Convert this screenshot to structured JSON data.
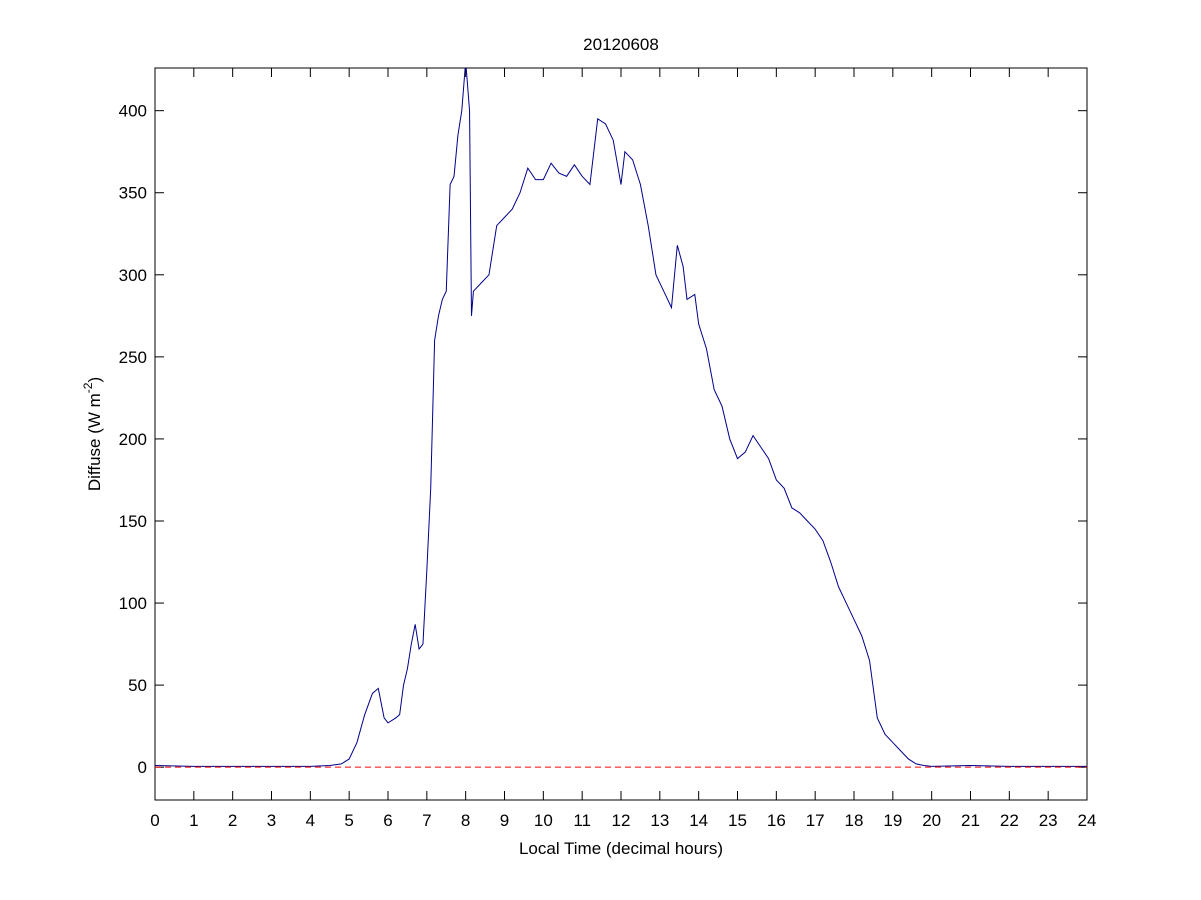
{
  "chart_data": {
    "type": "line",
    "title": "20120608",
    "xlabel": "Local Time (decimal hours)",
    "ylabel": [
      "Diffuse (W m",
      "-2",
      ")"
    ],
    "xlim": [
      0,
      24
    ],
    "ylim": [
      -20,
      426
    ],
    "xticks": [
      0,
      1,
      2,
      3,
      4,
      5,
      6,
      7,
      8,
      9,
      10,
      11,
      12,
      13,
      14,
      15,
      16,
      17,
      18,
      19,
      20,
      21,
      22,
      23,
      24
    ],
    "yticks": [
      0,
      50,
      100,
      150,
      200,
      250,
      300,
      350,
      400
    ],
    "series": [
      {
        "color": "#00008b",
        "x": [
          0,
          1,
          2,
          3,
          4,
          4.5,
          4.8,
          5.0,
          5.2,
          5.4,
          5.6,
          5.75,
          5.9,
          6.0,
          6.2,
          6.3,
          6.4,
          6.5,
          6.6,
          6.7,
          6.8,
          6.9,
          7.0,
          7.1,
          7.2,
          7.3,
          7.4,
          7.5,
          7.6,
          7.7,
          7.8,
          7.9,
          8.0,
          8.1,
          8.15,
          8.2,
          8.4,
          8.6,
          8.8,
          9.0,
          9.2,
          9.4,
          9.6,
          9.8,
          10.0,
          10.2,
          10.4,
          10.6,
          10.8,
          11.0,
          11.2,
          11.4,
          11.6,
          11.8,
          12.0,
          12.1,
          12.3,
          12.5,
          12.7,
          12.9,
          13.1,
          13.3,
          13.45,
          13.6,
          13.7,
          13.9,
          14.0,
          14.2,
          14.4,
          14.6,
          14.8,
          15.0,
          15.2,
          15.4,
          15.6,
          15.8,
          16.0,
          16.2,
          16.4,
          16.6,
          16.8,
          17.0,
          17.2,
          17.4,
          17.6,
          17.8,
          18.0,
          18.2,
          18.4,
          18.6,
          18.8,
          19.0,
          19.2,
          19.4,
          19.6,
          19.8,
          20,
          21,
          22,
          23,
          24
        ],
        "values": [
          1,
          0.5,
          0.5,
          0.5,
          0.5,
          1,
          2,
          5,
          15,
          32,
          45,
          48,
          30,
          27,
          30,
          32,
          50,
          60,
          75,
          87,
          72,
          75,
          120,
          170,
          260,
          275,
          285,
          290,
          355,
          360,
          385,
          400,
          430,
          400,
          275,
          290,
          295,
          300,
          330,
          335,
          340,
          350,
          365,
          358,
          358,
          368,
          362,
          360,
          367,
          360,
          355,
          395,
          392,
          382,
          355,
          375,
          370,
          355,
          330,
          300,
          290,
          280,
          318,
          305,
          285,
          288,
          270,
          255,
          230,
          220,
          200,
          188,
          192,
          202,
          195,
          188,
          175,
          170,
          158,
          155,
          150,
          145,
          138,
          125,
          110,
          100,
          90,
          80,
          65,
          30,
          20,
          15,
          10,
          5,
          2,
          1,
          0.5,
          1,
          0.5,
          0.5,
          0.5
        ]
      },
      {
        "color": "#ff0000",
        "dash": "dashed",
        "x": [
          0,
          24
        ],
        "values": [
          0,
          0
        ]
      }
    ]
  }
}
